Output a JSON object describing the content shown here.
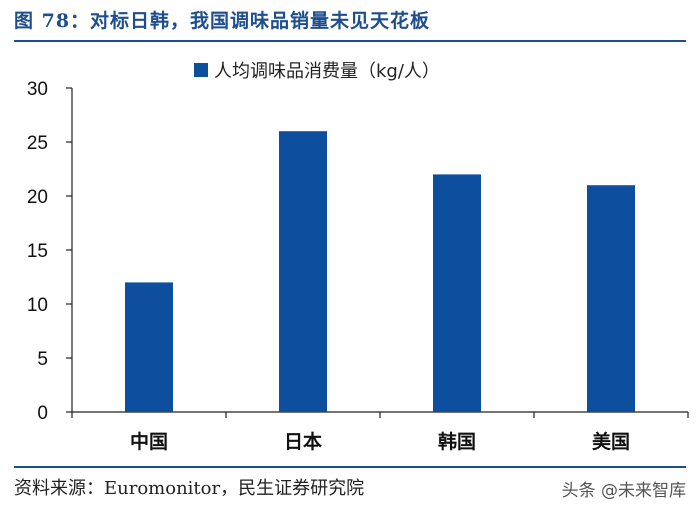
{
  "figure_title": "图 78：对标日韩，我国调味品销量未见天花板",
  "source_note": "资料来源：Euromonitor，民生证券研究院",
  "watermark": "头条 @未来智库",
  "colors": {
    "bar": "#0d4f9e",
    "title": "#1f4e8c",
    "axis": "#222222"
  },
  "chart_data": {
    "type": "bar",
    "categories": [
      "中国",
      "日本",
      "韩国",
      "美国"
    ],
    "series": [
      {
        "name": "人均调味品消费量（kg/人）",
        "values": [
          12,
          26,
          22,
          21
        ]
      }
    ],
    "ylim": [
      0,
      30
    ],
    "yticks": [
      0,
      5,
      10,
      15,
      20,
      25,
      30
    ],
    "legend_position": "top-center",
    "grid": false
  }
}
